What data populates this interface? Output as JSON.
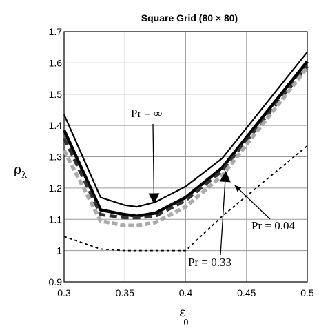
{
  "chart_data": {
    "type": "line",
    "title": "Square Grid (80 × 80)",
    "ylabel": {
      "symbol": "ρ",
      "subscript": "λ"
    },
    "xlabel": {
      "symbol": "ε",
      "subscript": "0"
    },
    "xlim": [
      0.3,
      0.5
    ],
    "ylim": [
      0.9,
      1.7
    ],
    "xticks": [
      "0.3",
      "0.35",
      "0.4",
      "0.45",
      "0.5"
    ],
    "yticks": [
      "0.9",
      "1",
      "1.1",
      "1.2",
      "1.3",
      "1.4",
      "1.5",
      "1.6",
      "1.7"
    ],
    "grid": true,
    "x": [
      0.3,
      0.33,
      0.35,
      0.36,
      0.375,
      0.4,
      0.43,
      0.5
    ],
    "series": [
      {
        "values": [
          1.435,
          1.17,
          1.145,
          1.14,
          1.155,
          1.205,
          1.295,
          1.635
        ],
        "style": "solid-thin",
        "color": "#000000"
      },
      {
        "values": [
          1.385,
          1.13,
          1.115,
          1.11,
          1.12,
          1.17,
          1.265,
          1.605
        ],
        "style": "solid-thick",
        "color": "#000000"
      },
      {
        "values": [
          1.36,
          1.115,
          1.105,
          1.105,
          1.11,
          1.16,
          1.255,
          1.59
        ],
        "style": "dashed-thick",
        "color": "#333333"
      },
      {
        "values": [
          1.32,
          1.095,
          1.08,
          1.08,
          1.09,
          1.14,
          1.24,
          1.585
        ],
        "style": "dashed-gray",
        "color": "#aaaaaa"
      },
      {
        "values": [
          1.045,
          1.005,
          1.0,
          1.0,
          1.0,
          1.0,
          1.11,
          1.335
        ],
        "style": "dotted",
        "color": "#000000"
      }
    ],
    "annotations": [
      {
        "text": "Pr = ∞",
        "arrow_to": [
          0.374,
          1.148
        ]
      },
      {
        "text": "Pr = 0.04",
        "arrow_to": [
          0.44,
          1.21
        ]
      },
      {
        "text": "Pr = 0.33",
        "arrow_to": [
          0.433,
          1.255
        ]
      }
    ]
  }
}
